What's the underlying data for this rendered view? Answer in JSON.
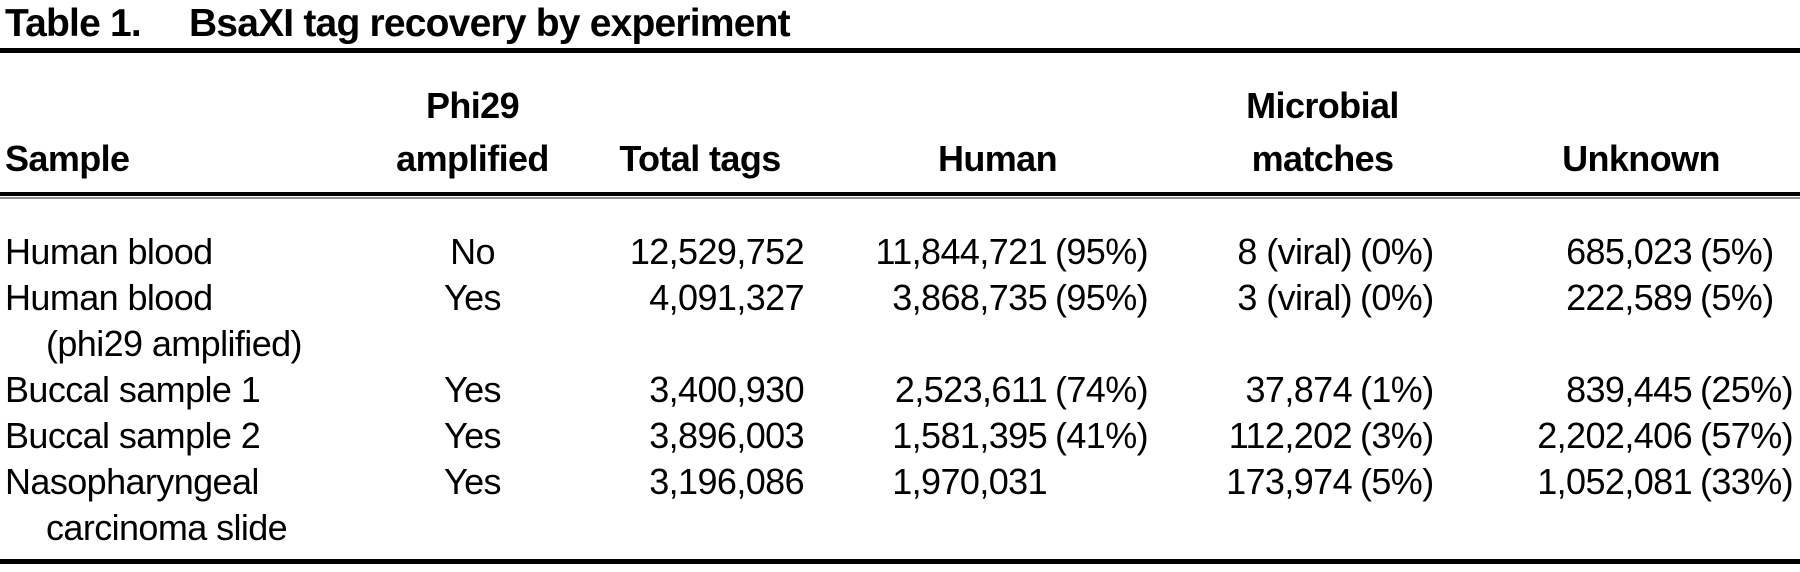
{
  "title": {
    "label": "Table 1.",
    "text": "BsaXI tag recovery by experiment"
  },
  "columns": [
    {
      "id": "sample",
      "label": "Sample"
    },
    {
      "id": "phi29",
      "label": "Phi29 amplified",
      "lines": [
        "Phi29",
        "amplified"
      ]
    },
    {
      "id": "total",
      "label": "Total tags"
    },
    {
      "id": "human",
      "label": "Human"
    },
    {
      "id": "microbial",
      "label": "Microbial matches",
      "lines": [
        "Microbial",
        "matches"
      ]
    },
    {
      "id": "unknown",
      "label": "Unknown"
    }
  ],
  "rows": [
    {
      "sample": [
        "Human blood"
      ],
      "phi29": "No",
      "total": "12,529,752",
      "human": {
        "num": "11,844,721",
        "pct": "(95%)"
      },
      "microbial": {
        "num": "8 (viral)",
        "pct": "(0%)"
      },
      "unknown": {
        "num": "685,023",
        "pct": "(5%)"
      }
    },
    {
      "sample": [
        "Human blood",
        "(phi29 amplified)"
      ],
      "phi29": "Yes",
      "total": "4,091,327",
      "human": {
        "num": "3,868,735",
        "pct": "(95%)"
      },
      "microbial": {
        "num": "3 (viral)",
        "pct": "(0%)"
      },
      "unknown": {
        "num": "222,589",
        "pct": "(5%)"
      }
    },
    {
      "sample": [
        "Buccal sample 1"
      ],
      "phi29": "Yes",
      "total": "3,400,930",
      "human": {
        "num": "2,523,611",
        "pct": "(74%)"
      },
      "microbial": {
        "num": "37,874",
        "pct": "(1%)"
      },
      "unknown": {
        "num": "839,445",
        "pct": "(25%)"
      }
    },
    {
      "sample": [
        "Buccal sample 2"
      ],
      "phi29": "Yes",
      "total": "3,896,003",
      "human": {
        "num": "1,581,395",
        "pct": "(41%)"
      },
      "microbial": {
        "num": "112,202",
        "pct": "(3%)"
      },
      "unknown": {
        "num": "2,202,406",
        "pct": "(57%)"
      }
    },
    {
      "sample": [
        "Nasopharyngeal",
        "carcinoma slide"
      ],
      "phi29": "Yes",
      "total": "3,196,086",
      "human": {
        "num": "1,970,031",
        "pct": ""
      },
      "microbial": {
        "num": "173,974",
        "pct": "(5%)"
      },
      "unknown": {
        "num": "1,052,081",
        "pct": "(33%)"
      }
    }
  ],
  "colors": {
    "text": "#000000",
    "background": "#ffffff",
    "rule": "#000000",
    "rule_shadow": "#8f8f8f"
  }
}
